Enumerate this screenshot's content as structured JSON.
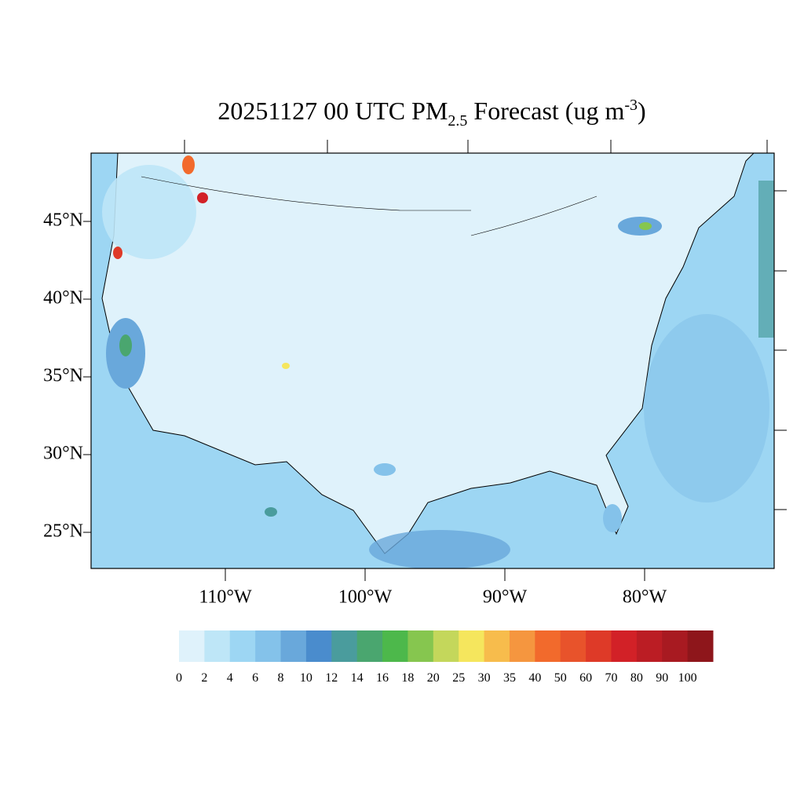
{
  "map": {
    "title": {
      "date": "20251127 00 UTC PM",
      "sub": "2.5",
      "rest": " Forecast (ug m",
      "sup": "-3",
      "end": ")"
    },
    "lat_labels": [
      "45°N",
      "40°N",
      "35°N",
      "30°N",
      "25°N"
    ],
    "lon_labels": [
      "110°W",
      "100°W",
      "90°W",
      "80°W"
    ],
    "colorbar": {
      "levels": [
        0,
        2,
        4,
        6,
        8,
        10,
        12,
        14,
        16,
        18,
        20,
        25,
        30,
        35,
        40,
        50,
        60,
        70,
        80,
        90,
        100
      ],
      "colors": [
        "#dff2fb",
        "#bee6f7",
        "#9dd6f3",
        "#84c2ea",
        "#69a8db",
        "#4a8ccd",
        "#4a9c9d",
        "#4aa66f",
        "#4db84b",
        "#86c64f",
        "#c4d75b",
        "#f5e65d",
        "#f7bc4c",
        "#f5963f",
        "#f26a2c",
        "#e8532b",
        "#de3a28",
        "#d22127",
        "#bb1d24",
        "#a81a21",
        "#8e161b"
      ]
    }
  }
}
